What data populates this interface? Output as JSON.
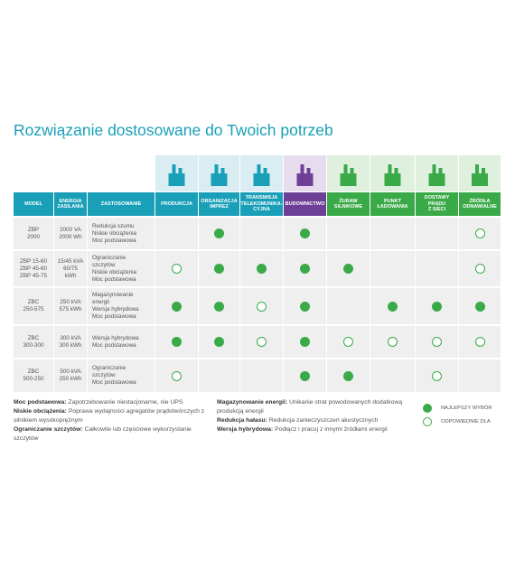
{
  "title": "Rozwiązanie dostosowane do Twoich potrzeb",
  "table": {
    "headers": {
      "model": "MODEL",
      "energy": [
        "ENERGIA",
        "ZASILANIA"
      ],
      "use": "ZASTOSOWANIE"
    },
    "applications": [
      {
        "label": [
          "PRODUKCJA"
        ],
        "color": "#1a9fb8",
        "tint": "#d9edf2"
      },
      {
        "label": [
          "ORGANIZACJA",
          "IMPREZ"
        ],
        "color": "#1a9fb8",
        "tint": "#d9edf2"
      },
      {
        "label": [
          "TRANSMISJA",
          "TELEKOMUNIKA-",
          "CYJNA"
        ],
        "color": "#1a9fb8",
        "tint": "#d9edf2"
      },
      {
        "label": [
          "BUDOWNICTWO"
        ],
        "color": "#6d3f97",
        "tint": "#e6dcee"
      },
      {
        "label": [
          "ŻURAW",
          "SILNIKOWE"
        ],
        "color": "#3aaa48",
        "tint": "#dff0df"
      },
      {
        "label": [
          "PUNKT",
          "ŁADOWANIA"
        ],
        "color": "#3aaa48",
        "tint": "#dff0df"
      },
      {
        "label": [
          "DOSTAWY PRĄDU",
          "Z SIECI"
        ],
        "color": "#3aaa48",
        "tint": "#dff0df"
      },
      {
        "label": [
          "ŹRÓDŁA",
          "ODNAWIALNE"
        ],
        "color": "#3aaa48",
        "tint": "#dff0df"
      }
    ],
    "rows": [
      {
        "model": [
          "ZBP",
          "2000"
        ],
        "energy": [
          "2000 VA",
          "2000 Wh"
        ],
        "use": [
          "Redukcja szumu",
          "Niskie obciążenia",
          "Moc podstawowa"
        ],
        "cells": [
          null,
          "best",
          null,
          "best",
          null,
          null,
          null,
          "suitable"
        ]
      },
      {
        "model": [
          "ZBP 15-60",
          "ZBP 45-60",
          "ZBP 45-75"
        ],
        "energy": [
          "15/45 kVA",
          "60/75",
          "kWh"
        ],
        "use": [
          "Ograniczanie",
          "szczytów",
          "Niskie obciążenia",
          "Moc podstawowa"
        ],
        "cells": [
          "suitable",
          "best",
          "best",
          "best",
          "best",
          null,
          null,
          "suitable"
        ]
      },
      {
        "model": [
          "ZBC",
          "250-575"
        ],
        "energy": [
          "250 kVA",
          "575 kWh"
        ],
        "use": [
          "Magazynowanie",
          "energii",
          "Wersja hybrydowa",
          "Moc podstawowa"
        ],
        "cells": [
          "best",
          "best",
          "suitable",
          "best",
          null,
          "best",
          "best",
          "best"
        ]
      },
      {
        "model": [
          "ZBC",
          "300-300"
        ],
        "energy": [
          "300 kVA",
          "300 kWh"
        ],
        "use": [
          "Wersja hybrydowa",
          "Moc podstawowa"
        ],
        "cells": [
          "best",
          "best",
          "suitable",
          "best",
          "suitable",
          "suitable",
          "suitable",
          "suitable"
        ]
      },
      {
        "model": [
          "ZBC",
          "500-250"
        ],
        "energy": [
          "500 kVA",
          "250 kWh"
        ],
        "use": [
          "Ograniczanie",
          "szczytów",
          "Moc podstawowa"
        ],
        "cells": [
          "suitable",
          null,
          null,
          "best",
          "best",
          null,
          "suitable",
          null
        ]
      }
    ]
  },
  "notes": {
    "left": [
      {
        "term": "Moc podstawowa:",
        "text": "Zapotrzebowanie niestacjonarne, nie UPS"
      },
      {
        "term": "Niskie obciążenia:",
        "text": "Poprawa wydajności agregatów prądotwórczych z silnikiem wysokoprężnym"
      },
      {
        "term": "Ograniczanie szczytów:",
        "text": "Całkowite lub częściowe wykorzystanie szczytów"
      }
    ],
    "right": [
      {
        "term": "Magazynowanie energii:",
        "text": "Unikanie strat powodowanych dodatkową produkcją energii"
      },
      {
        "term": "Redukcja hałasu:",
        "text": "Redukcja zanieczyszczeń akustycznych"
      },
      {
        "term": "Wersja hybrydowa:",
        "text": "Podłącz i pracuj z innymi źródłami energii"
      }
    ]
  },
  "legend": {
    "best": "NAJLEPSZY WYBÓR",
    "suitable": "ODPOWIEDNIE DLA"
  }
}
